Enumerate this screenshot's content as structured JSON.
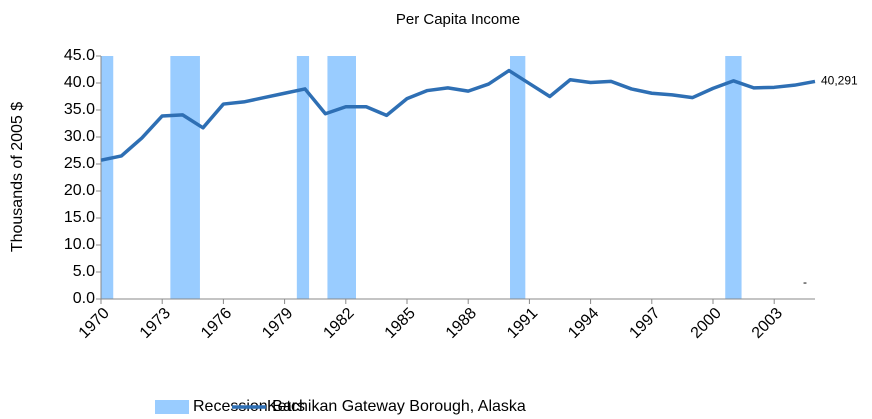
{
  "chart_data": {
    "type": "line",
    "title": "Per Capita Income",
    "y_label": "Thousands of 2005 $",
    "x": [
      1970,
      1971,
      1972,
      1973,
      1974,
      1975,
      1976,
      1977,
      1978,
      1979,
      1980,
      1981,
      1982,
      1983,
      1984,
      1985,
      1986,
      1987,
      1988,
      1989,
      1990,
      1991,
      1992,
      1993,
      1994,
      1995,
      1996,
      1997,
      1998,
      1999,
      2000,
      2001,
      2002,
      2003,
      2004,
      2005
    ],
    "series": [
      {
        "name": "Ketchikan Gateway Borough, Alaska",
        "color": "#2e6fb4",
        "values": [
          25.7,
          26.5,
          29.8,
          33.9,
          34.1,
          31.7,
          36.1,
          36.5,
          37.3,
          38.1,
          38.9,
          34.3,
          35.6,
          35.6,
          34.0,
          37.1,
          38.6,
          39.1,
          38.5,
          39.8,
          42.3,
          39.9,
          37.5,
          40.6,
          40.1,
          40.3,
          38.9,
          38.1,
          37.8,
          37.3,
          39.0,
          40.4,
          39.1,
          39.2,
          39.6,
          40.291
        ],
        "value_labels": [
          null,
          null,
          null,
          null,
          null,
          null,
          null,
          null,
          null,
          null,
          null,
          null,
          null,
          null,
          null,
          null,
          null,
          null,
          null,
          null,
          null,
          null,
          null,
          null,
          null,
          null,
          null,
          null,
          null,
          null,
          null,
          null,
          null,
          null,
          null,
          "40,291"
        ]
      }
    ],
    "recession_bars": {
      "name": "Recession Bars",
      "color": "#99ccff",
      "periods": [
        {
          "start": 1970,
          "end": 1970.6
        },
        {
          "start": 1973.4,
          "end": 1974.85
        },
        {
          "start": 1979.6,
          "end": 1980.2
        },
        {
          "start": 1981.1,
          "end": 1982.5
        },
        {
          "start": 1990.05,
          "end": 1990.8
        },
        {
          "start": 2000.6,
          "end": 2001.4
        }
      ]
    },
    "annotations": [
      "-"
    ],
    "xlim": [
      1970,
      2005
    ],
    "xticks": [
      1970,
      1973,
      1976,
      1979,
      1982,
      1985,
      1988,
      1991,
      1994,
      1997,
      2000,
      2003
    ],
    "ylim": [
      0,
      45
    ],
    "yticks": [
      {
        "value": 0,
        "label": "0.0"
      },
      {
        "value": 5,
        "label": "5.0"
      },
      {
        "value": 10,
        "label": "10.0"
      },
      {
        "value": 15,
        "label": "15.0"
      },
      {
        "value": 20,
        "label": "20.0"
      },
      {
        "value": 25,
        "label": "25.0"
      },
      {
        "value": 30,
        "label": "30.0"
      },
      {
        "value": 35,
        "label": "35.0"
      },
      {
        "value": 40,
        "label": "40.0"
      },
      {
        "value": 45,
        "label": "45.0"
      }
    ]
  }
}
